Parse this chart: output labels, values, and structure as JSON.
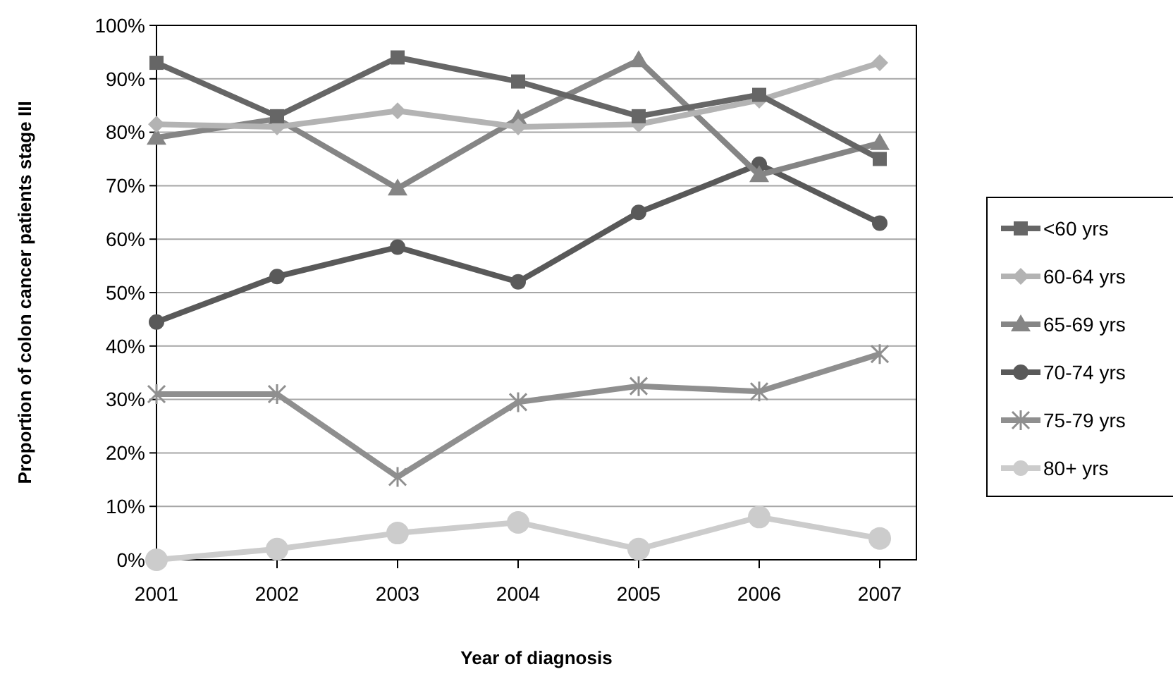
{
  "chart_data": {
    "type": "line",
    "xlabel": "Year of diagnosis",
    "ylabel": "Proportion of colon cancer patients stage III",
    "categories": [
      "2001",
      "2002",
      "2003",
      "2004",
      "2005",
      "2006",
      "2007"
    ],
    "ylim": [
      0,
      100
    ],
    "yticks": [
      {
        "value": 0,
        "label": "0%"
      },
      {
        "value": 10,
        "label": "10%"
      },
      {
        "value": 20,
        "label": "20%"
      },
      {
        "value": 30,
        "label": "30%"
      },
      {
        "value": 40,
        "label": "40%"
      },
      {
        "value": 50,
        "label": "50%"
      },
      {
        "value": 60,
        "label": "60%"
      },
      {
        "value": 70,
        "label": "70%"
      },
      {
        "value": 80,
        "label": "80%"
      },
      {
        "value": 90,
        "label": "90%"
      },
      {
        "value": 100,
        "label": "100%"
      }
    ],
    "grid": "y",
    "legend": "right",
    "series": [
      {
        "name": "<60 yrs",
        "color": "#666666",
        "marker": "square",
        "values": [
          93,
          83,
          94,
          89.5,
          83,
          87,
          75
        ]
      },
      {
        "name": "60-64 yrs",
        "color": "#b3b3b3",
        "marker": "diamond",
        "values": [
          81.5,
          81,
          84,
          81,
          81.5,
          86,
          93
        ]
      },
      {
        "name": "65-69 yrs",
        "color": "#858585",
        "marker": "triangle",
        "values": [
          79,
          82.5,
          69.5,
          82.5,
          93.5,
          72,
          78
        ]
      },
      {
        "name": "70-74 yrs",
        "color": "#595959",
        "marker": "circle",
        "values": [
          44.5,
          53,
          58.5,
          52,
          65,
          74,
          63
        ]
      },
      {
        "name": "75-79 yrs",
        "color": "#8f8f8f",
        "marker": "cross",
        "values": [
          31,
          31,
          15.5,
          29.5,
          32.5,
          31.5,
          38.5
        ]
      },
      {
        "name": "80+ yrs",
        "color": "#cccccc",
        "marker": "circle",
        "values": [
          0,
          2,
          5,
          7,
          2,
          8,
          4
        ]
      }
    ]
  }
}
